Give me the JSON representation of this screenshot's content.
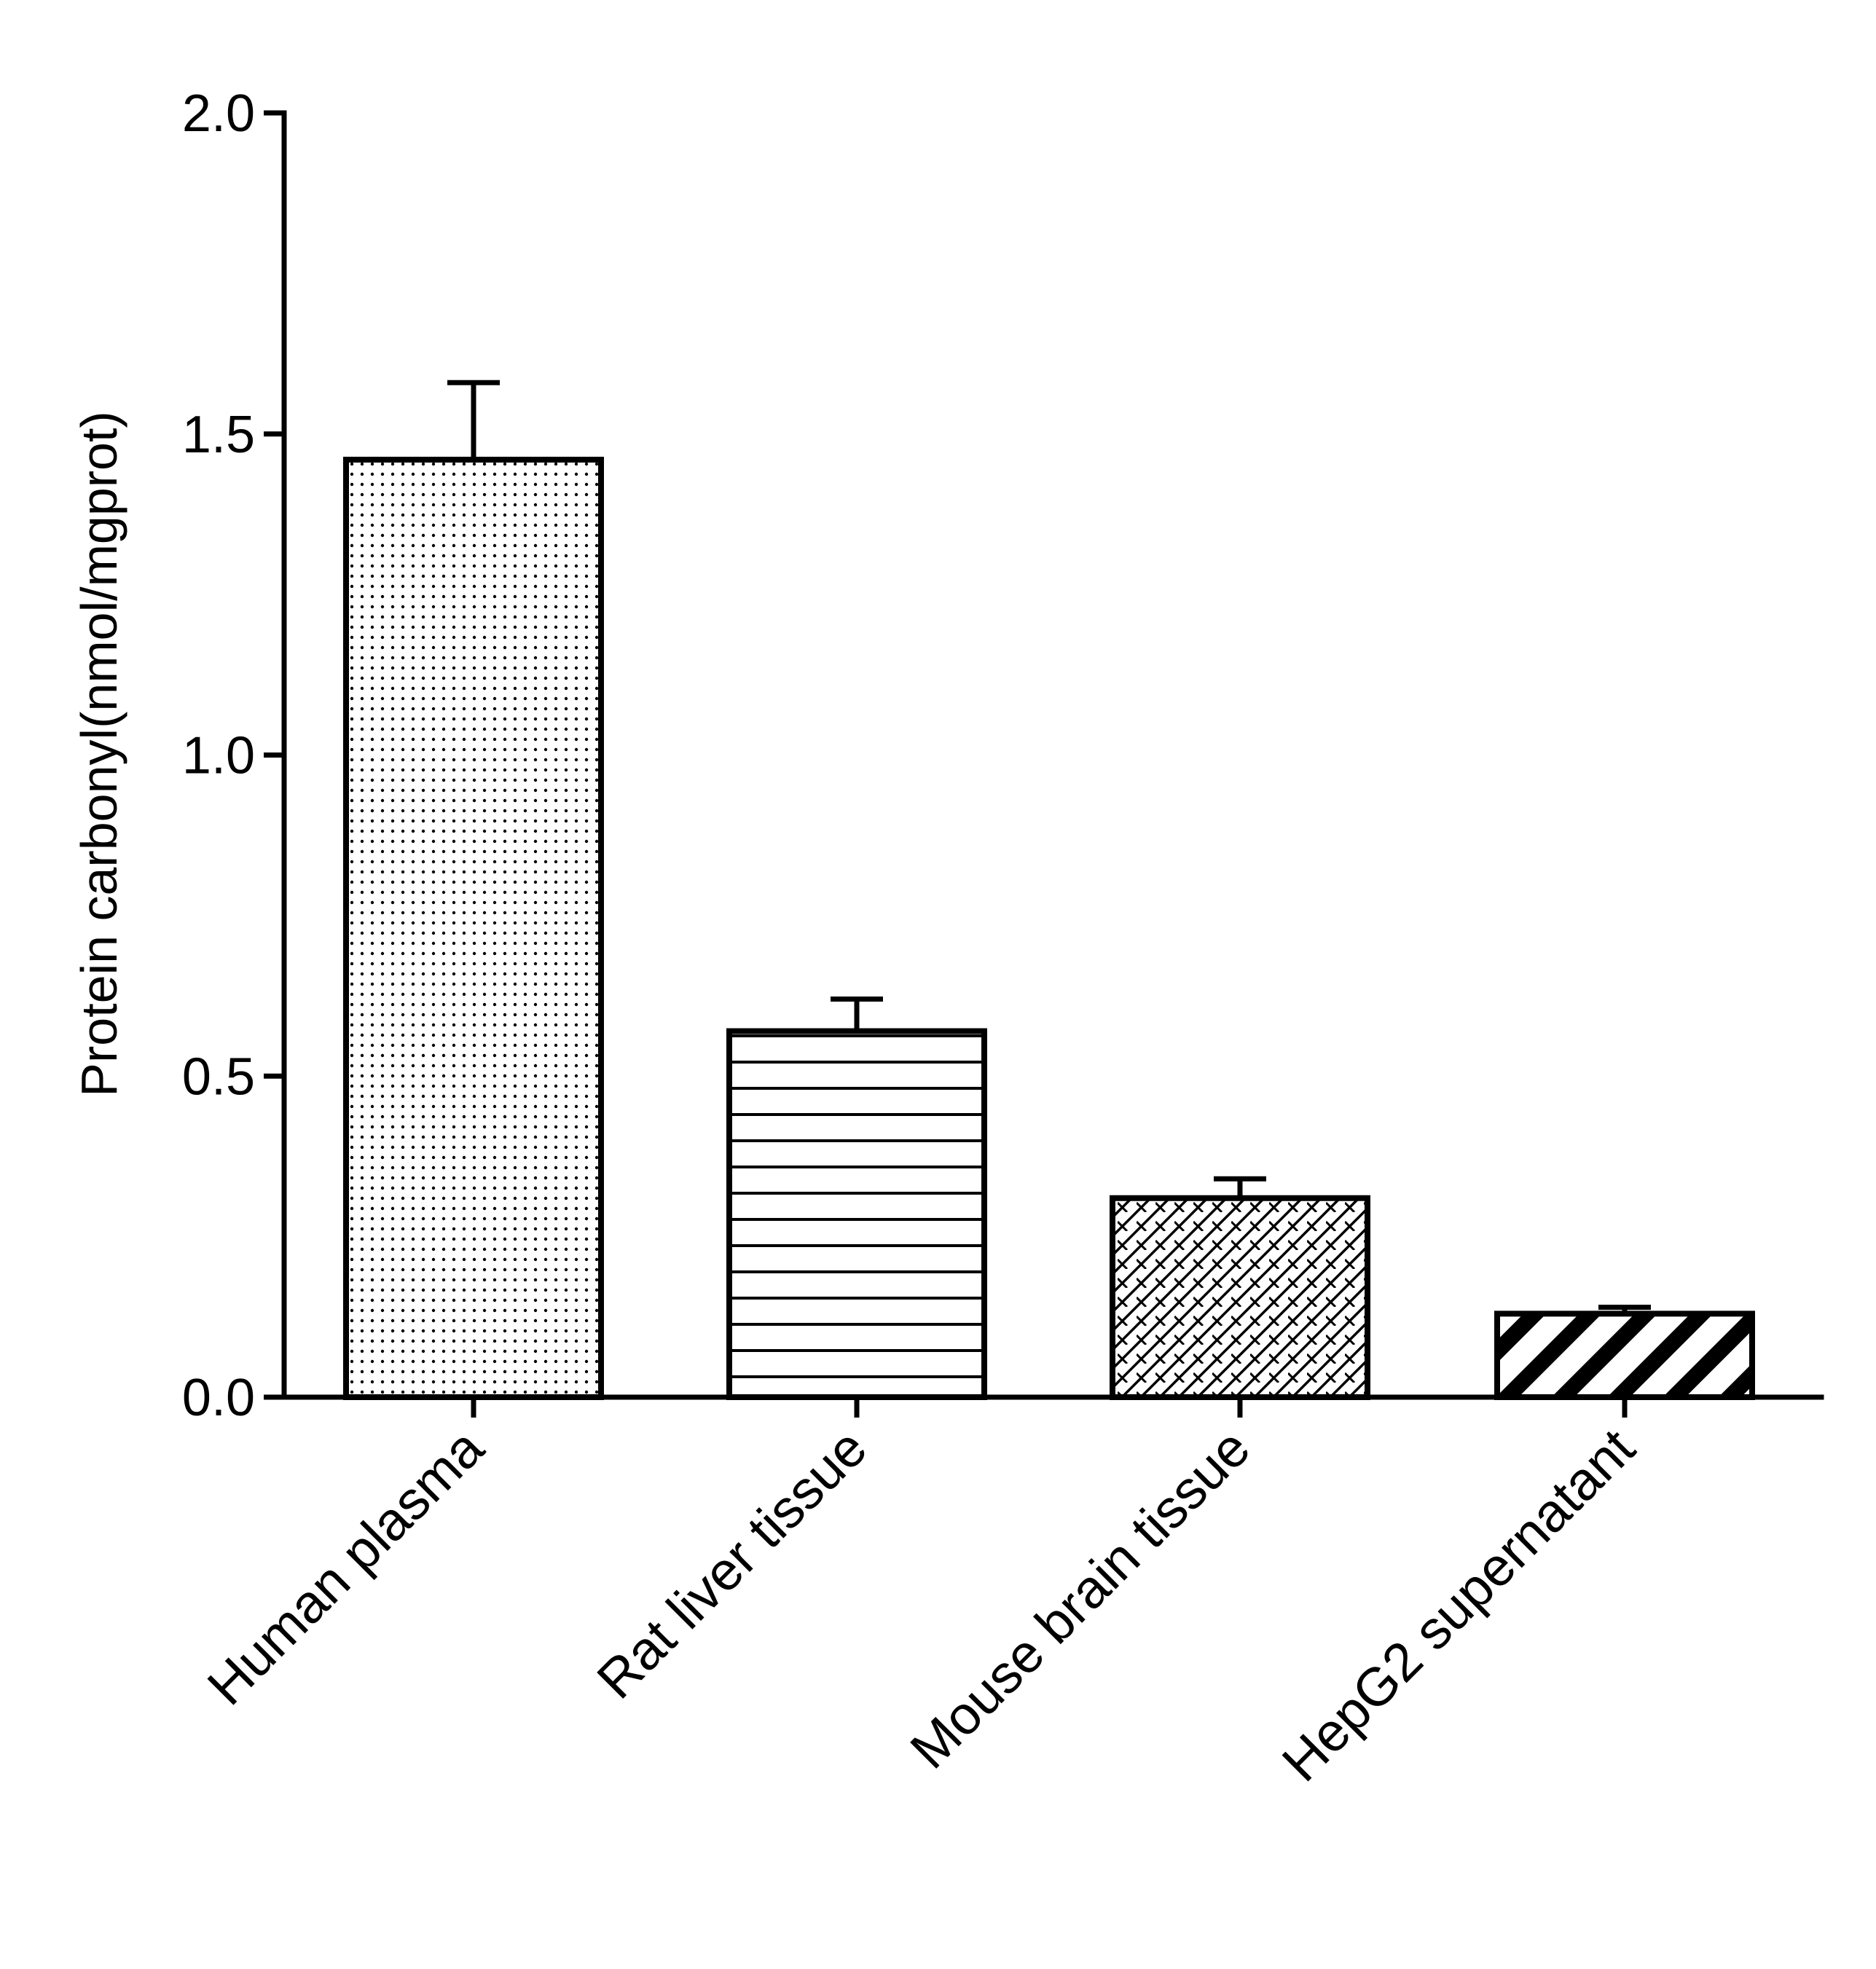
{
  "chart_data": {
    "type": "bar",
    "title": "",
    "xlabel": "",
    "ylabel": "Protein carbonyl(nmol/mgprot)",
    "ylim": [
      0,
      2.0
    ],
    "yticks": [
      0.0,
      0.5,
      1.0,
      1.5,
      2.0
    ],
    "ytick_labels": [
      "0.0",
      "0.5",
      "1.0",
      "1.5",
      "2.0"
    ],
    "categories": [
      "Human plasma",
      "Rat liver tissue",
      "Mouse brain tissue",
      "HepG2 supernatant"
    ],
    "values": [
      1.46,
      0.57,
      0.31,
      0.13
    ],
    "errors": [
      0.12,
      0.05,
      0.03,
      0.01
    ],
    "patterns": [
      "dots",
      "horizontal-lines",
      "crosshatch",
      "diagonal-stripes"
    ],
    "grid": false,
    "legend": "none"
  }
}
